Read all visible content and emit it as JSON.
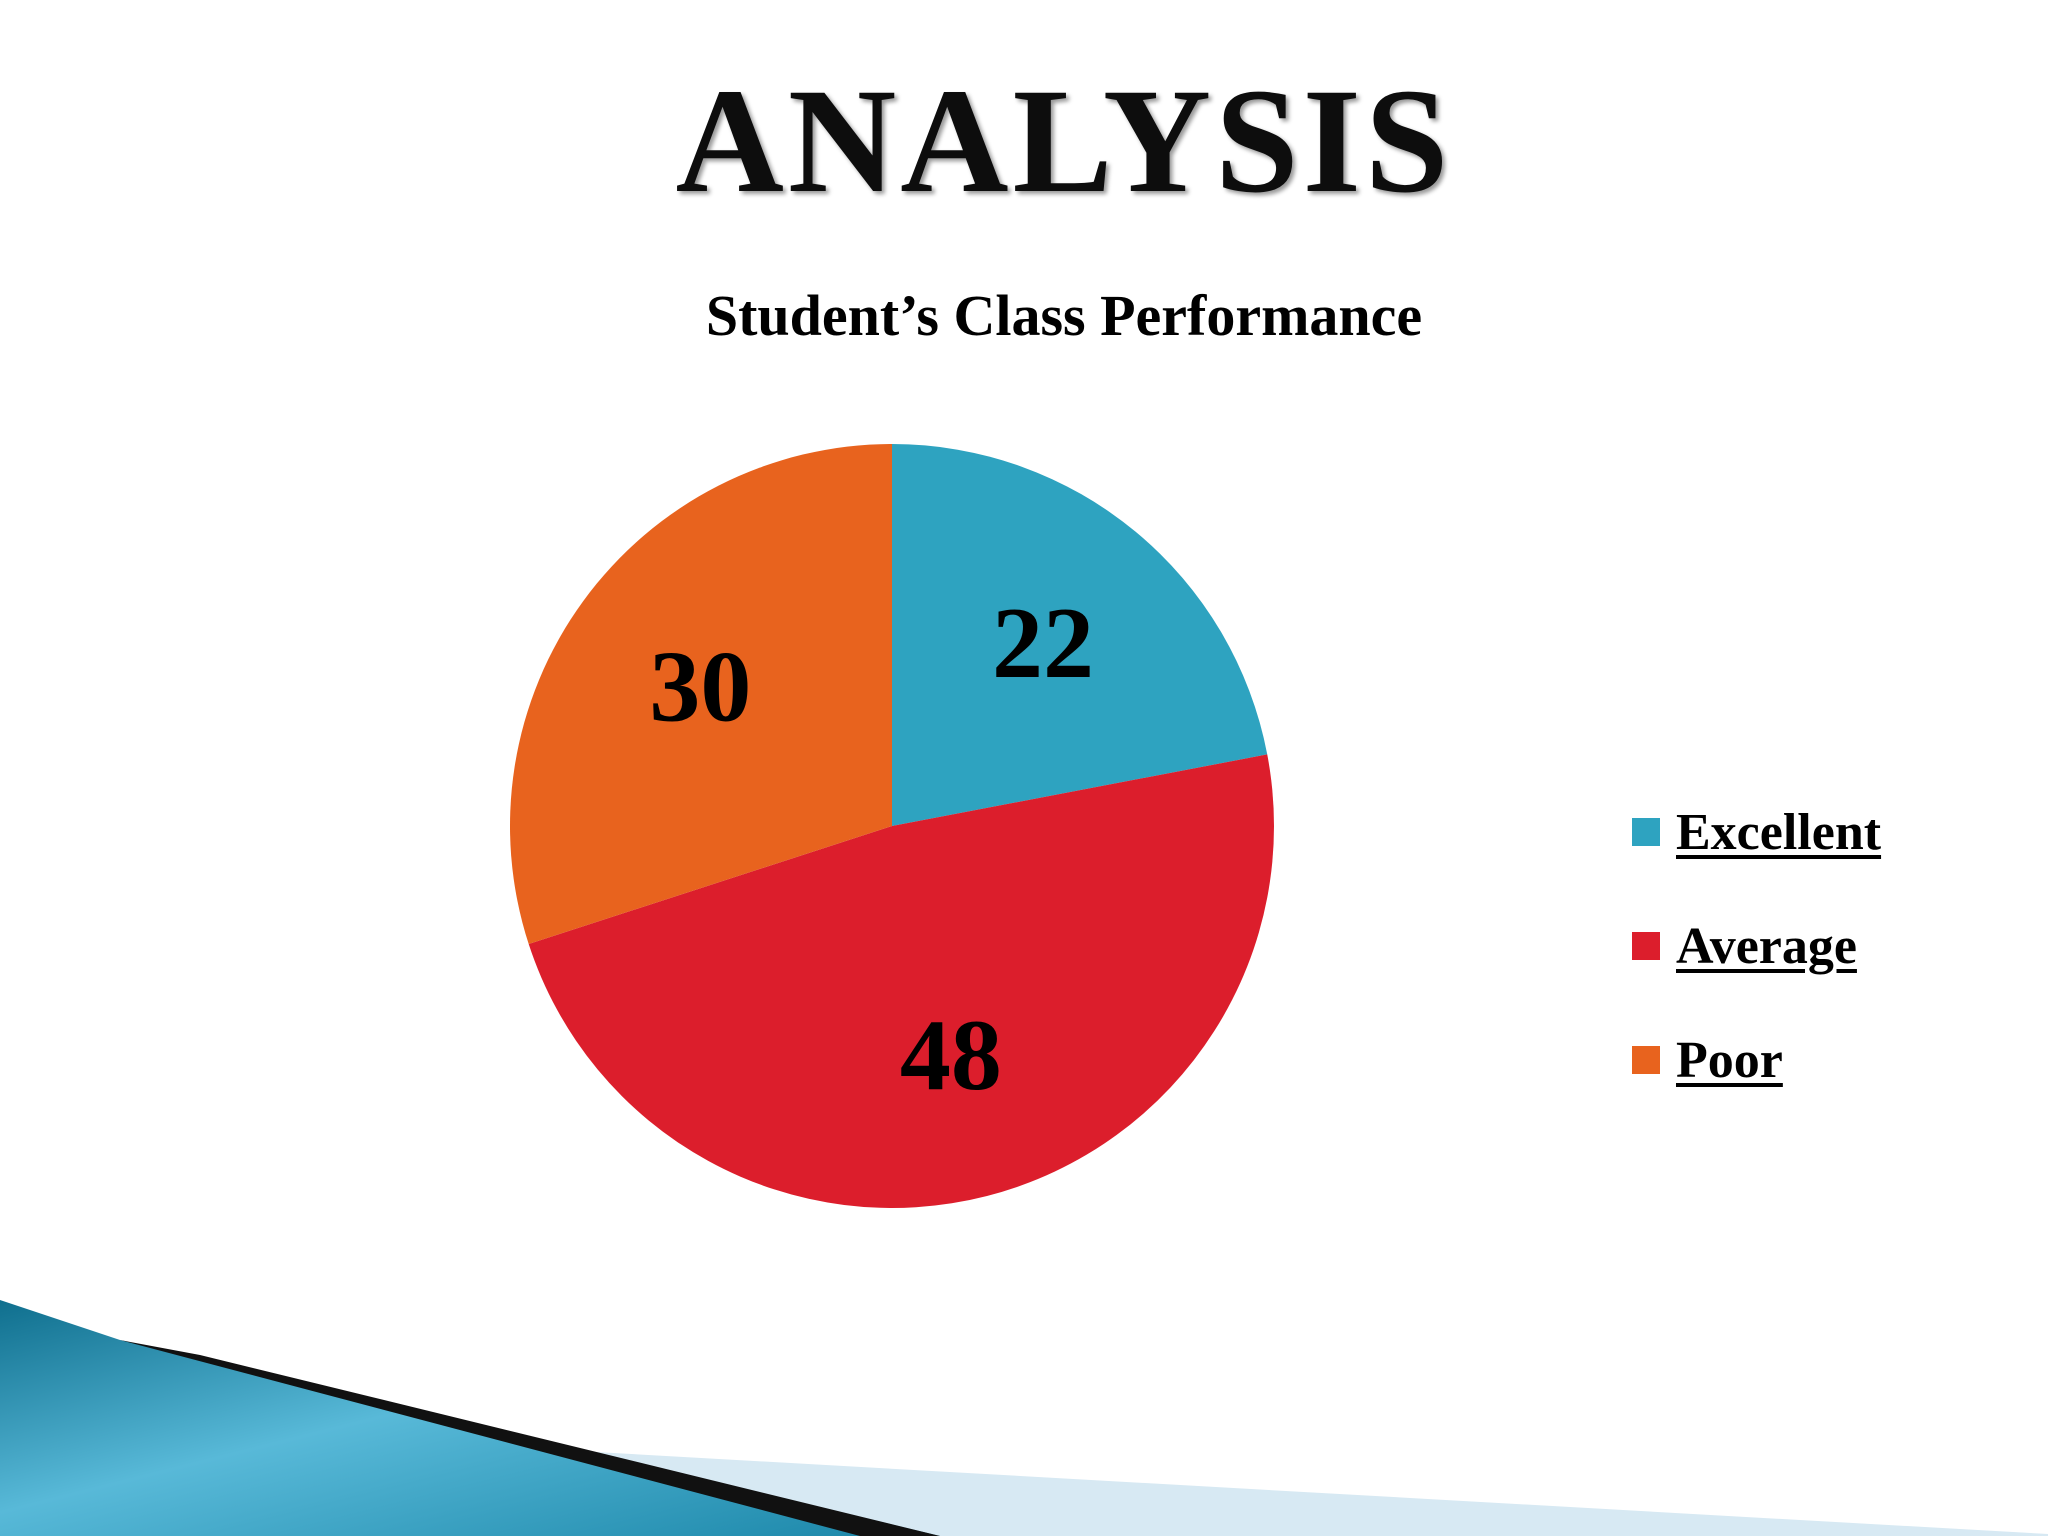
{
  "slide": {
    "title": "ANALYSIS"
  },
  "chart_data": {
    "type": "pie",
    "title": "Student’s Class Performance",
    "categories": [
      "Excellent",
      "Average",
      "Poor"
    ],
    "values": [
      22,
      48,
      30
    ],
    "colors": [
      "#2ea3c0",
      "#dc1e2c",
      "#e8631e"
    ],
    "legend_position": "right",
    "start_angle": "top, clockwise"
  }
}
